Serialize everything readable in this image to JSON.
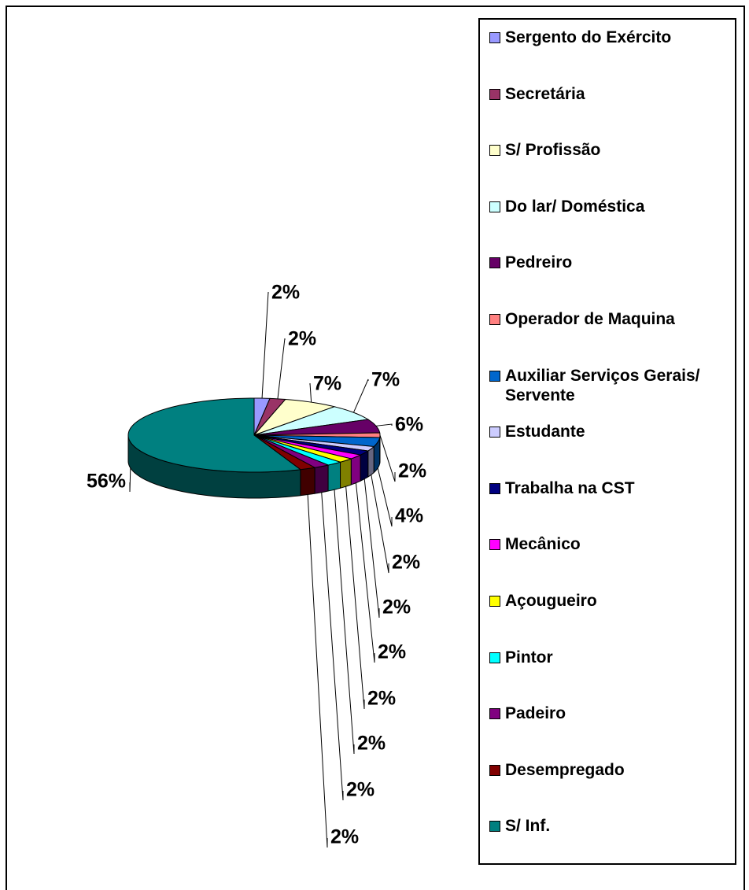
{
  "chart_data": {
    "type": "pie",
    "categories": [
      "Sergento do Exército",
      "Secretária",
      "S/ Profissão",
      "Do lar/ Doméstica",
      "Pedreiro",
      "Operador de Maquina",
      "Auxiliar Serviços Gerais/ Servente",
      "Estudante",
      "Trabalha na CST",
      "Mecânico",
      "Açougueiro",
      "Pintor",
      "Padeiro",
      "Desempregado",
      "S/ Inf."
    ],
    "values": [
      2,
      2,
      7,
      7,
      6,
      2,
      4,
      2,
      2,
      2,
      2,
      2,
      2,
      2,
      56
    ],
    "value_labels": [
      "2%",
      "2%",
      "7%",
      "7%",
      "6%",
      "2%",
      "4%",
      "2%",
      "2%",
      "2%",
      "2%",
      "2%",
      "2%",
      "2%",
      "56%"
    ],
    "colors": [
      "#9999ff",
      "#993366",
      "#ffffcc",
      "#ccffff",
      "#660066",
      "#ff8080",
      "#0066cc",
      "#ccccff",
      "#000080",
      "#ff00ff",
      "#ffff00",
      "#00ffff",
      "#800080",
      "#800000",
      "#008080"
    ],
    "legend": "right"
  }
}
